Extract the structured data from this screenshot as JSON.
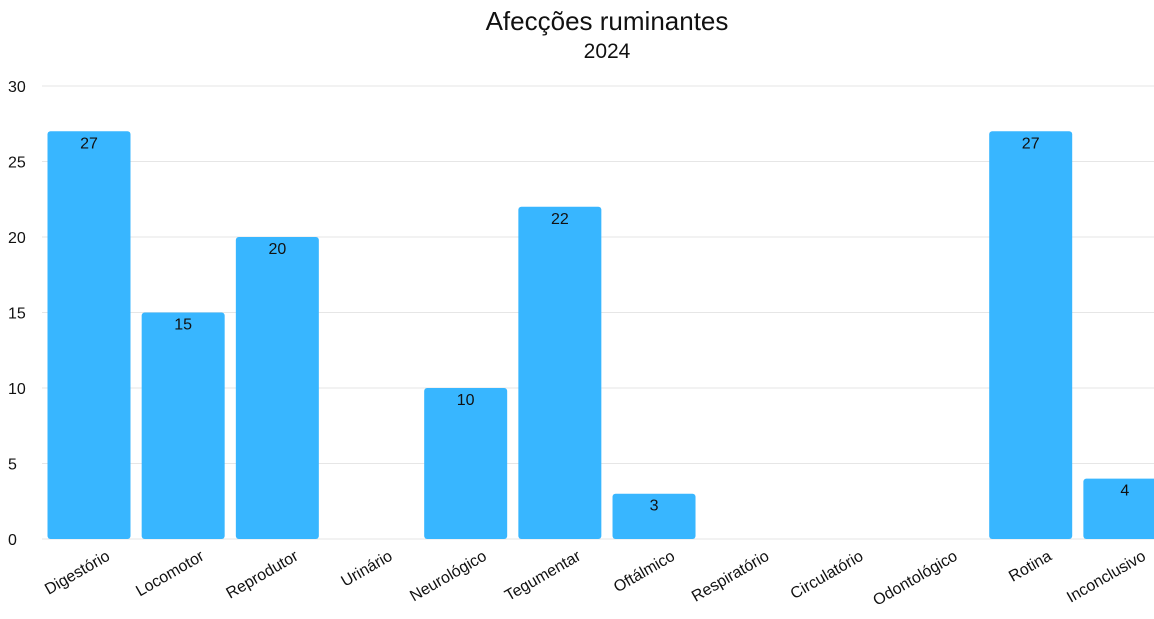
{
  "chart_data": {
    "type": "bar",
    "title": "Afecções ruminantes",
    "subtitle": "2024",
    "xlabel": "",
    "ylabel": "",
    "categories": [
      "Digestório",
      "Locomotor",
      "Reprodutor",
      "Urinário",
      "Neurológico",
      "Tegumentar",
      "Oftálmico",
      "Respiratório",
      "Circulatório",
      "Odontológico",
      "Rotina",
      "Inconclusivo"
    ],
    "values": [
      27,
      15,
      20,
      null,
      10,
      22,
      3,
      null,
      null,
      null,
      27,
      4
    ],
    "ylim": [
      0,
      30
    ],
    "yticks": [
      0,
      5,
      10,
      15,
      20,
      25,
      30
    ],
    "grid": true,
    "legend": "none",
    "bar_color": "#38b6ff",
    "grid_color": "#e6e6e6",
    "text_color": "#111111"
  }
}
